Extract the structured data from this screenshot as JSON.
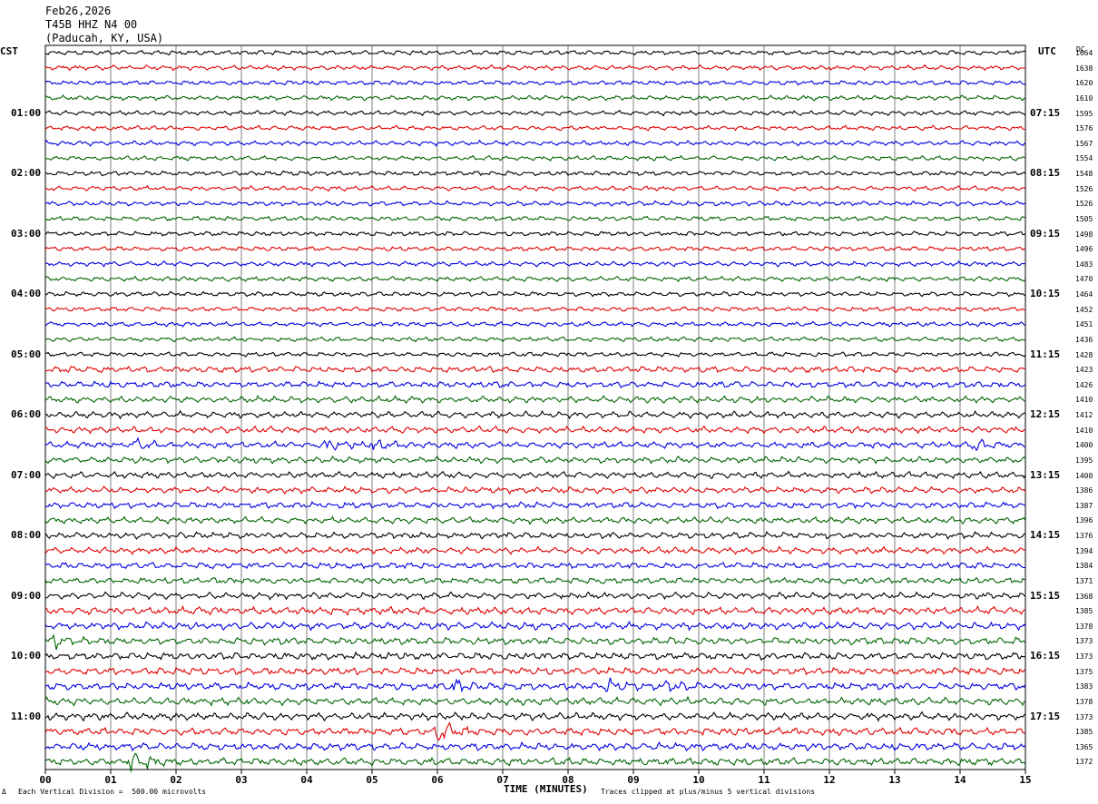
{
  "header": {
    "date": "Feb26,2026",
    "station": "T45B HHZ N4 00",
    "location": "(Paducah, KY, USA)"
  },
  "left_axis_title": "CST",
  "right_axis_title": "UTC",
  "dc_title": "DC",
  "colors": {
    "trace_cycle": [
      "#000000",
      "#e00000",
      "#0000e0",
      "#006400"
    ],
    "grid": "#000000"
  },
  "chart_data": {
    "type": "line",
    "subtype": "helicorder",
    "title": "",
    "xlabel": "TIME (MINUTES)",
    "xlim": [
      0,
      15
    ],
    "x_ticks": [
      "00",
      "01",
      "02",
      "03",
      "04",
      "05",
      "06",
      "07",
      "08",
      "09",
      "10",
      "11",
      "12",
      "13",
      "14",
      "15"
    ],
    "trace_minutes": 15,
    "cst_hour_labels": [
      "01:00",
      "02:00",
      "03:00",
      "04:00",
      "05:00",
      "06:00",
      "07:00",
      "08:00",
      "09:00",
      "10:00",
      "11:00"
    ],
    "utc_hour_labels": [
      "07:15",
      "08:15",
      "09:15",
      "10:15",
      "11:15",
      "12:15",
      "13:15",
      "14:15",
      "15:15",
      "16:15",
      "17:15"
    ],
    "dc_offsets": [
      1664,
      1638,
      1620,
      1610,
      1595,
      1576,
      1567,
      1554,
      1548,
      1526,
      1526,
      1505,
      1498,
      1496,
      1483,
      1470,
      1464,
      1452,
      1451,
      1436,
      1428,
      1423,
      1426,
      1410,
      1412,
      1410,
      1400,
      1395,
      1400,
      1386,
      1387,
      1396,
      1376,
      1394,
      1384,
      1371,
      1368,
      1385,
      1378,
      1373,
      1373,
      1375,
      1383,
      1378,
      1373,
      1385,
      1365,
      1372
    ],
    "events": [
      {
        "trace": 26,
        "minute": 1.3,
        "amplitude": 1.4
      },
      {
        "trace": 26,
        "minute": 4.3,
        "amplitude": 1.3
      },
      {
        "trace": 26,
        "minute": 5.0,
        "amplitude": 1.5
      },
      {
        "trace": 26,
        "minute": 14.2,
        "amplitude": 1.3
      },
      {
        "trace": 39,
        "minute": 0.1,
        "amplitude": 1.6
      },
      {
        "trace": 42,
        "minute": 6.2,
        "amplitude": 1.8
      },
      {
        "trace": 42,
        "minute": 8.6,
        "amplitude": 1.4
      },
      {
        "trace": 42,
        "minute": 9.5,
        "amplitude": 1.5
      },
      {
        "trace": 45,
        "minute": 6.0,
        "amplitude": 3.0
      },
      {
        "trace": 47,
        "minute": 1.3,
        "amplitude": 3.0
      }
    ],
    "footer_scale": "Each Vertical Division =  500.00 microvolts",
    "footer_clip": "Traces clipped at plus/minus 5 vertical divisions",
    "footer_mark": "Δ"
  }
}
